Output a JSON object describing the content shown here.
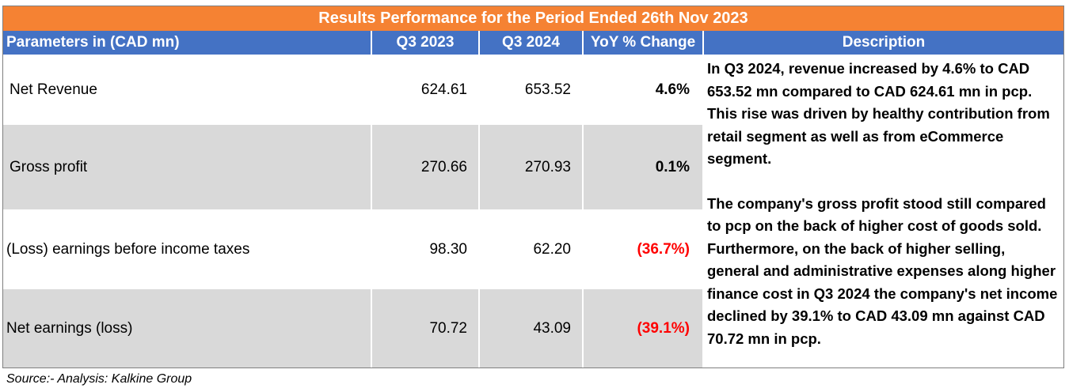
{
  "title": "Results Performance for the Period Ended 26th Nov 2023",
  "headers": {
    "parameters": "Parameters in (CAD mn)",
    "q3_2023": "Q3 2023",
    "q3_2024": "Q3 2024",
    "yoy": "YoY % Change",
    "description": "Description"
  },
  "rows": [
    {
      "label": "Net Revenue",
      "q3_2023": "624.61",
      "q3_2024": "653.52",
      "yoy": "4.6%"
    },
    {
      "label": "Gross profit",
      "q3_2023": "270.66",
      "q3_2024": "270.93",
      "yoy": "0.1%"
    },
    {
      "label": "(Loss) earnings before income taxes",
      "q3_2023": "98.30",
      "q3_2024": "62.20",
      "yoy": "(36.7%)"
    },
    {
      "label": "Net earnings (loss)",
      "q3_2023": "70.72",
      "q3_2024": "43.09",
      "yoy": "(39.1%)"
    }
  ],
  "description": {
    "paragraph_1": "In Q3 2024, revenue increased by 4.6% to CAD 653.52 mn compared to CAD 624.61 mn in pcp. This rise was driven by healthy contribution from retail segment as well as from eCommerce segment.",
    "paragraph_2": "The company's gross profit stood still compared to pcp on the back of higher cost of goods sold. Furthermore, on the back of higher selling, general and administrative expenses along higher finance cost in Q3 2024 the company's net income declined by 39.1% to CAD 43.09 mn against CAD 70.72 mn in pcp."
  },
  "source": "Source:- Analysis: Kalkine Group",
  "colors": {
    "title_bg": "#f58233",
    "header_bg": "#4472c4",
    "alt_row_bg": "#d9d9d9",
    "negative": "#ff0000"
  }
}
